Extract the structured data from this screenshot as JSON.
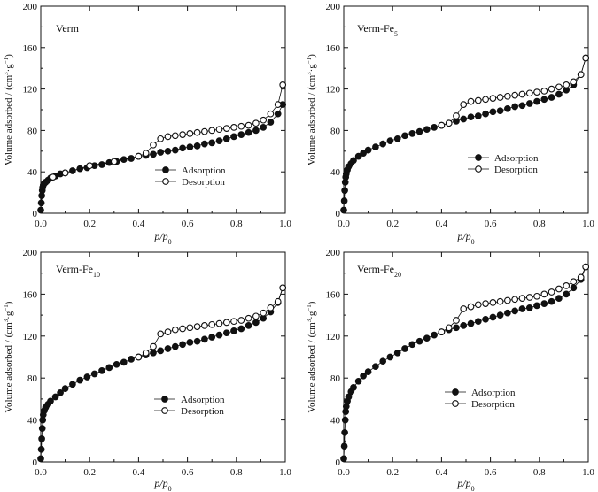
{
  "figure": {
    "xlabel_main": "p/p",
    "xlabel_sub": "0",
    "ylabel_text": "Volume adsorbed / (cm",
    "ylabel_sup1": "3",
    "ylabel_mid": "·g",
    "ylabel_sup2": "−1",
    "ylabel_end": ")"
  },
  "chart_data": [
    {
      "type": "scatter",
      "panel_label": "Verm",
      "panel_label_sub": "",
      "xlim": [
        0,
        1.0
      ],
      "ylim": [
        0,
        200
      ],
      "xticks": [
        "0.0",
        "0.2",
        "0.4",
        "0.6",
        "0.8",
        "1.0"
      ],
      "yticks": [
        "0",
        "40",
        "80",
        "120",
        "160",
        "200"
      ],
      "legend": {
        "position": "center-right",
        "entries": [
          "Adsorption",
          "Desorption"
        ]
      },
      "series": [
        {
          "name": "Adsorption",
          "marker": "filled-circle",
          "x": [
            0.0,
            0.002,
            0.004,
            0.006,
            0.008,
            0.01,
            0.015,
            0.02,
            0.03,
            0.04,
            0.06,
            0.08,
            0.1,
            0.13,
            0.16,
            0.19,
            0.22,
            0.25,
            0.28,
            0.31,
            0.34,
            0.37,
            0.4,
            0.43,
            0.46,
            0.49,
            0.52,
            0.55,
            0.58,
            0.61,
            0.64,
            0.67,
            0.7,
            0.73,
            0.76,
            0.79,
            0.82,
            0.85,
            0.88,
            0.91,
            0.94,
            0.97,
            0.99
          ],
          "y": [
            3,
            10,
            17,
            22,
            25,
            27,
            29,
            30,
            32,
            34,
            36,
            38,
            39,
            41,
            43,
            44,
            46,
            47,
            49,
            50,
            52,
            53,
            55,
            56,
            57,
            59,
            60,
            61,
            63,
            64,
            65,
            67,
            68,
            70,
            72,
            74,
            76,
            78,
            80,
            83,
            88,
            96,
            105
          ]
        },
        {
          "name": "Desorption",
          "marker": "open-circle",
          "x": [
            0.99,
            0.97,
            0.94,
            0.91,
            0.88,
            0.85,
            0.82,
            0.79,
            0.76,
            0.73,
            0.7,
            0.67,
            0.64,
            0.61,
            0.58,
            0.55,
            0.52,
            0.49,
            0.46,
            0.43,
            0.4,
            0.3,
            0.2,
            0.1,
            0.05
          ],
          "y": [
            124,
            105,
            96,
            90,
            87,
            85,
            84,
            83,
            82,
            81,
            80,
            79,
            78,
            77,
            76,
            75,
            74,
            72,
            66,
            58,
            55,
            50,
            46,
            39,
            35
          ]
        }
      ]
    },
    {
      "type": "scatter",
      "panel_label": "Verm-Fe",
      "panel_label_sub": "5",
      "xlim": [
        0,
        1.0
      ],
      "ylim": [
        0,
        200
      ],
      "xticks": [
        "0.0",
        "0.2",
        "0.4",
        "0.6",
        "0.8",
        "1.0"
      ],
      "yticks": [
        "0",
        "40",
        "80",
        "120",
        "160",
        "200"
      ],
      "legend": {
        "position": "center-right",
        "entries": [
          "Adsorption",
          "Desorption"
        ]
      },
      "series": [
        {
          "name": "Adsorption",
          "marker": "filled-circle",
          "x": [
            0.0,
            0.002,
            0.004,
            0.006,
            0.008,
            0.01,
            0.015,
            0.02,
            0.03,
            0.04,
            0.06,
            0.08,
            0.1,
            0.13,
            0.16,
            0.19,
            0.22,
            0.25,
            0.28,
            0.31,
            0.34,
            0.37,
            0.4,
            0.43,
            0.46,
            0.49,
            0.52,
            0.55,
            0.58,
            0.61,
            0.64,
            0.67,
            0.7,
            0.73,
            0.76,
            0.79,
            0.82,
            0.85,
            0.88,
            0.91,
            0.94,
            0.97,
            0.99
          ],
          "y": [
            3,
            12,
            22,
            30,
            35,
            38,
            42,
            45,
            48,
            51,
            55,
            58,
            61,
            64,
            67,
            70,
            72,
            75,
            77,
            79,
            81,
            83,
            85,
            87,
            89,
            91,
            93,
            94,
            96,
            98,
            99,
            101,
            103,
            104,
            106,
            108,
            110,
            112,
            115,
            119,
            124,
            134,
            150
          ]
        },
        {
          "name": "Desorption",
          "marker": "open-circle",
          "x": [
            0.99,
            0.97,
            0.94,
            0.91,
            0.88,
            0.85,
            0.82,
            0.79,
            0.76,
            0.73,
            0.7,
            0.67,
            0.64,
            0.61,
            0.58,
            0.55,
            0.52,
            0.49,
            0.46,
            0.43,
            0.4
          ],
          "y": [
            150,
            134,
            127,
            124,
            122,
            120,
            118,
            117,
            116,
            115,
            114,
            113,
            112,
            111,
            110,
            109,
            108,
            105,
            94,
            87,
            85
          ]
        }
      ]
    },
    {
      "type": "scatter",
      "panel_label": "Verm-Fe",
      "panel_label_sub": "10",
      "xlim": [
        0,
        1.0
      ],
      "ylim": [
        0,
        200
      ],
      "xticks": [
        "0.0",
        "0.2",
        "0.4",
        "0.6",
        "0.8",
        "1.0"
      ],
      "yticks": [
        "0",
        "40",
        "80",
        "120",
        "160",
        "200"
      ],
      "legend": {
        "position": "bottom-center",
        "entries": [
          "Adsorption",
          "Desorption"
        ]
      },
      "series": [
        {
          "name": "Adsorption",
          "marker": "filled-circle",
          "x": [
            0.0,
            0.002,
            0.004,
            0.006,
            0.008,
            0.01,
            0.015,
            0.02,
            0.03,
            0.04,
            0.06,
            0.08,
            0.1,
            0.13,
            0.16,
            0.19,
            0.22,
            0.25,
            0.28,
            0.31,
            0.34,
            0.37,
            0.4,
            0.43,
            0.46,
            0.49,
            0.52,
            0.55,
            0.58,
            0.61,
            0.64,
            0.67,
            0.7,
            0.73,
            0.76,
            0.79,
            0.82,
            0.85,
            0.88,
            0.91,
            0.94,
            0.97,
            0.99
          ],
          "y": [
            3,
            12,
            22,
            32,
            40,
            45,
            49,
            52,
            55,
            58,
            62,
            66,
            70,
            74,
            78,
            81,
            84,
            87,
            90,
            93,
            95,
            98,
            100,
            102,
            104,
            106,
            108,
            110,
            112,
            114,
            115,
            117,
            119,
            121,
            123,
            125,
            127,
            130,
            133,
            137,
            143,
            152,
            166
          ]
        },
        {
          "name": "Desorption",
          "marker": "open-circle",
          "x": [
            0.99,
            0.97,
            0.94,
            0.91,
            0.88,
            0.85,
            0.82,
            0.79,
            0.76,
            0.73,
            0.7,
            0.67,
            0.64,
            0.61,
            0.58,
            0.55,
            0.52,
            0.49,
            0.46,
            0.43,
            0.4
          ],
          "y": [
            166,
            153,
            147,
            142,
            139,
            137,
            135,
            134,
            133,
            132,
            131,
            130,
            129,
            128,
            127,
            126,
            124,
            122,
            110,
            104,
            100
          ]
        }
      ]
    },
    {
      "type": "scatter",
      "panel_label": "Verm-Fe",
      "panel_label_sub": "20",
      "xlim": [
        0,
        1.0
      ],
      "ylim": [
        0,
        200
      ],
      "xticks": [
        "0.0",
        "0.2",
        "0.4",
        "0.6",
        "0.8",
        "1.0"
      ],
      "yticks": [
        "0",
        "40",
        "80",
        "120",
        "160",
        "200"
      ],
      "legend": {
        "position": "bottom-center",
        "entries": [
          "Adsorption",
          "Desorption"
        ]
      },
      "series": [
        {
          "name": "Adsorption",
          "marker": "filled-circle",
          "x": [
            0.0,
            0.002,
            0.004,
            0.006,
            0.008,
            0.01,
            0.015,
            0.02,
            0.03,
            0.04,
            0.06,
            0.08,
            0.1,
            0.13,
            0.16,
            0.19,
            0.22,
            0.25,
            0.28,
            0.31,
            0.34,
            0.37,
            0.4,
            0.43,
            0.46,
            0.49,
            0.52,
            0.55,
            0.58,
            0.61,
            0.64,
            0.67,
            0.7,
            0.73,
            0.76,
            0.79,
            0.82,
            0.85,
            0.88,
            0.91,
            0.94,
            0.97,
            0.99
          ],
          "y": [
            3,
            15,
            28,
            40,
            48,
            53,
            58,
            62,
            67,
            71,
            77,
            82,
            86,
            91,
            96,
            100,
            104,
            108,
            112,
            115,
            118,
            121,
            124,
            126,
            128,
            130,
            132,
            134,
            136,
            138,
            140,
            142,
            144,
            146,
            147,
            149,
            151,
            153,
            156,
            160,
            166,
            174,
            186
          ]
        },
        {
          "name": "Desorption",
          "marker": "open-circle",
          "x": [
            0.99,
            0.97,
            0.94,
            0.91,
            0.88,
            0.85,
            0.82,
            0.79,
            0.76,
            0.73,
            0.7,
            0.67,
            0.64,
            0.61,
            0.58,
            0.55,
            0.52,
            0.49,
            0.46,
            0.43,
            0.4
          ],
          "y": [
            186,
            176,
            172,
            168,
            165,
            162,
            160,
            158,
            157,
            156,
            155,
            154,
            153,
            152,
            151,
            150,
            148,
            146,
            135,
            128,
            124
          ]
        }
      ]
    }
  ]
}
